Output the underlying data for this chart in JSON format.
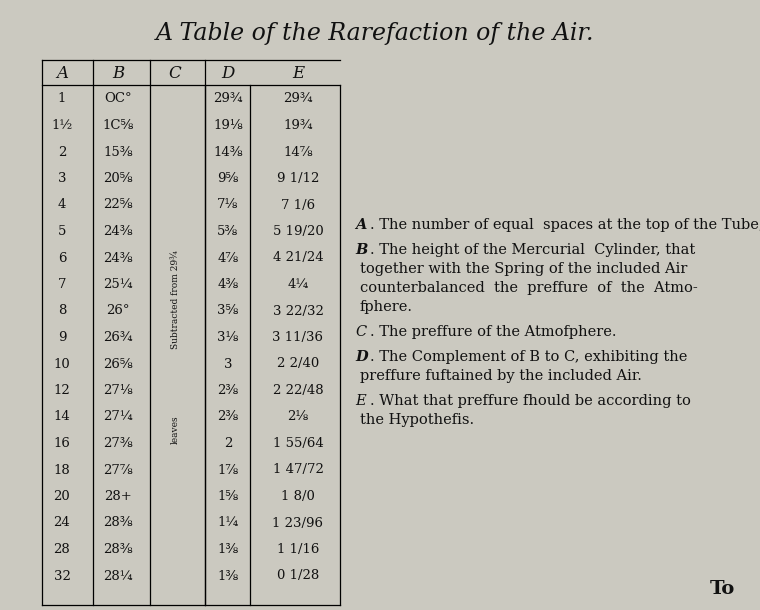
{
  "title": "A Table of the Rarefaction of the Air.",
  "bg_color": "#cbc9c0",
  "text_color": "#111111",
  "col_A": [
    "1",
    "1½",
    "2",
    "3",
    "4",
    "5",
    "6",
    "7",
    "8",
    "9",
    "10",
    "12",
    "14",
    "16",
    "18",
    "20",
    "24",
    "28",
    "32"
  ],
  "col_B": [
    "OC°",
    "1C⅝",
    "15⅜",
    "20⅝",
    "22⅝",
    "24⅜",
    "24⅜",
    "25¼",
    "26°",
    "26¾",
    "26⅝",
    "27⅛",
    "27¼",
    "27⅜",
    "27⅞",
    "28+",
    "28⅜",
    "28⅜",
    "28¼"
  ],
  "col_D": [
    "29¾",
    "19⅛",
    "14⅜",
    "9⅝",
    "7⅛",
    "5⅜",
    "4⅞",
    "4⅜",
    "3⅝",
    "3⅛",
    "3",
    "2⅜",
    "2⅜",
    "2",
    "1⅞",
    "1⅝",
    "1¼",
    "1⅜",
    "1⅜"
  ],
  "col_E": [
    "29¾",
    "19¾",
    "14⅞",
    "9 1/12",
    "7 1/6",
    "5 19/20",
    "4 21/24",
    "4¼",
    "3 22/32",
    "3 11/36",
    "2 2/40",
    "2 22/48",
    "2⅛",
    "1 55/64",
    "1 47/72",
    "1 8/0",
    "1 23/96",
    "1 1/16",
    "0 1/28"
  ],
  "legend": [
    {
      "letter": "A",
      "bold": true,
      "text": ". The number of equal  spaces at the top of the Tube, that contained the fame parcel of Air."
    },
    {
      "letter": "B",
      "bold": true,
      "text": ". The height of the Mercurial  Cylinder, that\ntogether with the Spring of the included Air\ncounterbalanced  the  preffure  of  the  Atmo-\nfphere."
    },
    {
      "letter": "C",
      "bold": false,
      "text": ". The preffure of the Atmofphere."
    },
    {
      "letter": "D",
      "bold": true,
      "text": ". The Complement of B to C, exhibiting the\npreffure fuftained by the included Air."
    },
    {
      "letter": "E",
      "bold": false,
      "text": ". What that preffure fhould be according to\nthe Hypothefis."
    }
  ],
  "to_label": "To"
}
